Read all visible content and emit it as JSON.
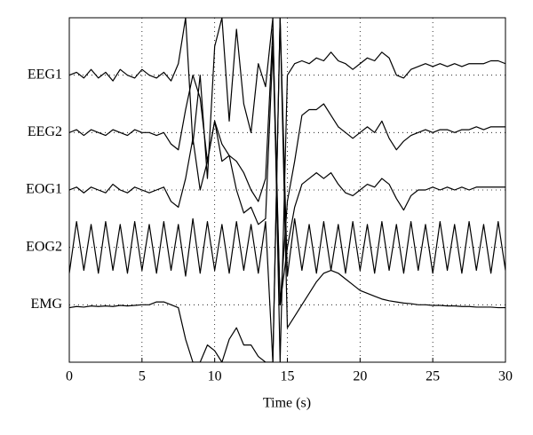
{
  "chart_data": {
    "type": "line",
    "xlabel": "Time (s)",
    "xlim": [
      0,
      30
    ],
    "xticks": [
      0,
      5,
      10,
      15,
      20,
      25,
      30
    ],
    "ylim": [
      0,
      6
    ],
    "yticks": [
      {
        "value": 5,
        "label": "EEG1"
      },
      {
        "value": 4,
        "label": "EEG2"
      },
      {
        "value": 3,
        "label": "EOG1"
      },
      {
        "value": 2,
        "label": "EOG2"
      },
      {
        "value": 1,
        "label": "EMG"
      }
    ],
    "grid": true,
    "x": [
      0,
      0.5,
      1,
      1.5,
      2,
      2.5,
      3,
      3.5,
      4,
      4.5,
      5,
      5.5,
      6,
      6.5,
      7,
      7.5,
      8,
      8.5,
      9,
      9.5,
      10,
      10.5,
      11,
      11.5,
      12,
      12.5,
      13,
      13.5,
      14,
      14.5,
      15,
      15.5,
      16,
      16.5,
      17,
      17.5,
      18,
      18.5,
      19,
      19.5,
      20,
      20.5,
      21,
      21.5,
      22,
      22.5,
      23,
      23.5,
      24,
      24.5,
      25,
      25.5,
      26,
      26.5,
      27,
      27.5,
      28,
      28.5,
      29,
      29.5,
      30
    ],
    "series": [
      {
        "color": "#000000",
        "values": [
          5.0,
          5.05,
          4.95,
          5.1,
          4.95,
          5.05,
          4.9,
          5.1,
          5.0,
          4.95,
          5.1,
          5.0,
          4.95,
          5.05,
          4.9,
          5.2,
          6.0,
          3.8,
          5.0,
          3.2,
          5.5,
          6.0,
          4.2,
          5.8,
          4.5,
          4.0,
          5.2,
          4.8,
          6.0,
          0.0,
          5.0,
          5.2,
          5.25,
          5.2,
          5.3,
          5.25,
          5.4,
          5.25,
          5.2,
          5.1,
          5.2,
          5.3,
          5.25,
          5.4,
          5.3,
          5.0,
          4.95,
          5.1,
          5.15,
          5.2,
          5.15,
          5.2,
          5.15,
          5.2,
          5.15,
          5.2,
          5.2,
          5.2,
          5.25,
          5.25,
          5.2
        ]
      },
      {
        "color": "#000000",
        "values": [
          4.0,
          4.05,
          3.95,
          4.05,
          4.0,
          3.95,
          4.05,
          4.0,
          3.95,
          4.05,
          4.0,
          4.0,
          3.95,
          4.0,
          3.8,
          3.7,
          4.4,
          5.0,
          4.6,
          3.5,
          4.2,
          3.8,
          3.6,
          3.5,
          3.3,
          3.0,
          2.8,
          3.2,
          5.8,
          1.0,
          2.8,
          3.5,
          4.3,
          4.4,
          4.4,
          4.5,
          4.3,
          4.1,
          4.0,
          3.9,
          4.0,
          4.1,
          4.0,
          4.2,
          3.9,
          3.7,
          3.85,
          3.95,
          4.0,
          4.05,
          4.0,
          4.05,
          4.05,
          4.0,
          4.05,
          4.05,
          4.1,
          4.05,
          4.1,
          4.1,
          4.1
        ]
      },
      {
        "color": "#000000",
        "values": [
          3.0,
          3.05,
          2.95,
          3.05,
          3.0,
          2.95,
          3.1,
          3.0,
          2.95,
          3.05,
          3.0,
          2.95,
          3.0,
          3.05,
          2.8,
          2.7,
          3.2,
          3.9,
          3.0,
          3.5,
          4.2,
          3.5,
          3.6,
          3.0,
          2.6,
          2.7,
          2.4,
          2.5,
          5.5,
          1.0,
          2.0,
          2.7,
          3.1,
          3.2,
          3.3,
          3.2,
          3.3,
          3.1,
          2.95,
          2.9,
          3.0,
          3.1,
          3.05,
          3.2,
          3.1,
          2.85,
          2.65,
          2.9,
          3.0,
          3.0,
          3.05,
          3.0,
          3.05,
          3.0,
          3.05,
          3.0,
          3.05,
          3.05,
          3.05,
          3.05,
          3.05
        ]
      },
      {
        "color": "#000000",
        "values": [
          1.55,
          2.45,
          1.6,
          2.4,
          1.55,
          2.45,
          1.6,
          2.4,
          1.55,
          2.45,
          1.6,
          2.4,
          1.55,
          2.45,
          1.6,
          2.4,
          1.5,
          2.5,
          1.55,
          2.45,
          1.6,
          2.4,
          1.55,
          2.45,
          1.6,
          2.4,
          1.55,
          2.45,
          0.0,
          6.0,
          1.5,
          2.5,
          1.6,
          2.4,
          1.55,
          2.45,
          1.6,
          2.4,
          1.55,
          2.45,
          1.6,
          2.4,
          1.55,
          2.45,
          1.6,
          2.4,
          1.55,
          2.45,
          1.6,
          2.4,
          1.55,
          2.45,
          1.6,
          2.4,
          1.55,
          2.45,
          1.6,
          2.4,
          1.55,
          2.45,
          1.6
        ]
      },
      {
        "color": "#000000",
        "values": [
          0.95,
          0.97,
          0.96,
          0.98,
          0.97,
          0.98,
          0.97,
          0.99,
          0.98,
          0.99,
          1.0,
          1.0,
          1.05,
          1.05,
          1.0,
          0.95,
          0.4,
          0.0,
          0.0,
          0.3,
          0.2,
          0.0,
          0.4,
          0.6,
          0.3,
          0.3,
          0.1,
          0.0,
          0.0,
          6.0,
          0.6,
          0.8,
          1.0,
          1.2,
          1.4,
          1.55,
          1.6,
          1.55,
          1.45,
          1.35,
          1.25,
          1.2,
          1.15,
          1.1,
          1.07,
          1.05,
          1.03,
          1.02,
          1.0,
          1.0,
          0.99,
          0.99,
          0.98,
          0.98,
          0.97,
          0.97,
          0.96,
          0.96,
          0.96,
          0.95,
          0.95
        ]
      }
    ]
  }
}
